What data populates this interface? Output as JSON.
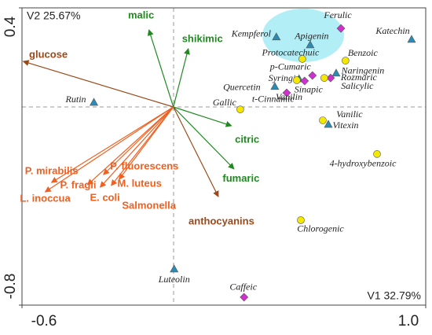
{
  "chart_data": {
    "type": "biplot",
    "xlabel": "V1 32.79%",
    "ylabel": "V2 25.67%",
    "xlim": [
      -0.6,
      1.0
    ],
    "ylim": [
      -0.8,
      0.4
    ],
    "xticks": [
      -0.6,
      {
        "value": 1.0,
        "label": "1.0"
      }
    ],
    "yticks": [
      -0.8,
      0.4
    ],
    "vectors": [
      {
        "name": "malic",
        "color": "#1f8a1f",
        "x": -0.097,
        "y": 0.311
      },
      {
        "name": "shikimic",
        "color": "#1f8a1f",
        "x": 0.059,
        "y": 0.235
      },
      {
        "name": "citric",
        "color": "#1f8a1f",
        "x": 0.23,
        "y": -0.076
      },
      {
        "name": "fumaric",
        "color": "#1f8a1f",
        "x": 0.24,
        "y": -0.25
      },
      {
        "name": "glucose",
        "color": "#9a4a1a",
        "x": -0.595,
        "y": 0.184
      },
      {
        "name": "anthocyanins",
        "color": "#9a4a1a",
        "x": 0.178,
        "y": -0.362
      },
      {
        "name": "P. mirabilis",
        "color": "#f06020",
        "x": -0.483,
        "y": -0.305
      },
      {
        "name": "L. inoccua",
        "color": "#f06020",
        "x": -0.508,
        "y": -0.343
      },
      {
        "name": "P. fragii",
        "color": "#f06020",
        "x": -0.34,
        "y": -0.314
      },
      {
        "name": "E. coli",
        "color": "#f06020",
        "x": -0.29,
        "y": -0.324
      },
      {
        "name": "P. fluorescens",
        "color": "#f06020",
        "x": -0.277,
        "y": -0.273
      },
      {
        "name": "M. luteus",
        "color": "#f06020",
        "x": -0.246,
        "y": -0.317
      },
      {
        "name": "Salmonella",
        "color": "#f06020",
        "x": -0.215,
        "y": -0.292
      }
    ],
    "point_groups": [
      {
        "marker": "triangle",
        "color": "#2a8cb4",
        "labels": [
          "Kempferol",
          "Apigenin",
          "Katechin",
          "Rutin",
          "Syringic",
          "Naringenin",
          "Vitexin",
          "Luteolin",
          "Quercetin"
        ],
        "x": [
          0.408,
          0.542,
          0.944,
          -0.315,
          0.498,
          0.645,
          0.614,
          0.003,
          0.402
        ],
        "y": [
          0.283,
          0.251,
          0.273,
          0.019,
          0.114,
          0.137,
          -0.07,
          -0.654,
          0.083
        ]
      },
      {
        "marker": "diamond",
        "color": "#d030d0",
        "labels": [
          "Ferulic",
          "p-Cumaric",
          "Rozmaric",
          "Sinapic",
          "Vanilin",
          "Caffeic"
        ],
        "x": [
          0.664,
          0.551,
          0.623,
          0.52,
          0.449,
          0.28
        ],
        "y": [
          0.317,
          0.127,
          0.117,
          0.105,
          0.057,
          -0.768
        ]
      },
      {
        "marker": "circle",
        "color": "#f5e800",
        "labels": [
          "Protocatechuic",
          "Benzoic",
          "Gallic",
          "t-Cinnamic",
          "Salicylic",
          "Vanilic",
          "4-hydroxybenzoic",
          "Chlorogenic"
        ],
        "x": [
          0.511,
          0.682,
          0.265,
          0.489,
          0.598,
          0.592,
          0.807,
          0.505
        ],
        "y": [
          0.194,
          0.187,
          -0.01,
          0.108,
          0.117,
          -0.054,
          -0.19,
          -0.457
        ]
      }
    ]
  }
}
